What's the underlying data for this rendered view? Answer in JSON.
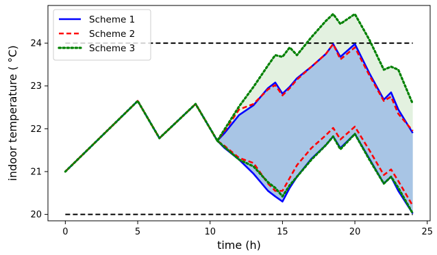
{
  "chart_data": {
    "type": "line",
    "xlabel": "time (h)",
    "ylabel": "indoor temperature ( °C)",
    "xlim": [
      -1.2,
      25.2
    ],
    "ylim": [
      19.85,
      24.88
    ],
    "xticks": [
      0,
      5,
      10,
      15,
      20,
      25
    ],
    "yticks": [
      20,
      21,
      22,
      23,
      24
    ],
    "legend_position": "top-left",
    "reference_lines": [
      {
        "y": 24,
        "x_range": [
          0,
          24
        ],
        "color": "#000000",
        "style": "dashed"
      },
      {
        "y": 20,
        "x_range": [
          0,
          24
        ],
        "color": "#000000",
        "style": "dashed"
      }
    ],
    "bands": [
      {
        "color": "#e3f1e0",
        "x": [
          10.5,
          12,
          13,
          14,
          14.5,
          15,
          15.5,
          16,
          17,
          18,
          18.5,
          19,
          20,
          21,
          22,
          22.5,
          23,
          24
        ],
        "upper": [
          21.72,
          22.52,
          22.98,
          23.48,
          23.72,
          23.68,
          23.9,
          23.72,
          24.14,
          24.52,
          24.68,
          24.45,
          24.68,
          24.08,
          23.38,
          23.45,
          23.38,
          22.58
        ],
        "lower": [
          21.72,
          21.28,
          21.12,
          20.75,
          20.62,
          20.42,
          20.68,
          20.88,
          21.28,
          21.62,
          21.82,
          21.52,
          21.88,
          21.28,
          20.72,
          20.88,
          20.62,
          20.02
        ]
      },
      {
        "color": "#a8c5e5",
        "x": [
          10.5,
          11,
          12,
          13,
          14,
          14.5,
          15,
          15.5,
          16,
          17,
          18,
          18.5,
          19,
          20,
          21,
          22,
          22.5,
          23,
          24
        ],
        "upper": [
          21.72,
          21.9,
          22.32,
          22.55,
          22.95,
          23.08,
          22.82,
          22.98,
          23.18,
          23.45,
          23.75,
          23.98,
          23.68,
          23.98,
          23.3,
          22.68,
          22.85,
          22.45,
          21.9
        ],
        "lower": [
          21.72,
          21.55,
          21.28,
          20.95,
          20.55,
          20.42,
          20.3,
          20.62,
          20.88,
          21.3,
          21.62,
          21.82,
          21.55,
          21.88,
          21.3,
          20.72,
          20.88,
          20.55,
          20.02
        ]
      }
    ],
    "series": [
      {
        "name": "Scheme 1",
        "color": "#0000ff",
        "style": "solid",
        "segments": [
          {
            "x": [
              0,
              5,
              6.5,
              9,
              10.5,
              11,
              12,
              13,
              14,
              14.5,
              15,
              15.5,
              16,
              17,
              18,
              18.5,
              19,
              20,
              21,
              22,
              22.5,
              23,
              24
            ],
            "y": [
              21.0,
              22.65,
              21.78,
              22.58,
              21.72,
              21.9,
              22.32,
              22.55,
              22.95,
              23.08,
              22.82,
              22.98,
              23.18,
              23.45,
              23.75,
              23.98,
              23.68,
              23.98,
              23.3,
              22.68,
              22.85,
              22.45,
              21.9
            ]
          },
          {
            "x": [
              10.5,
              11,
              12,
              13,
              14,
              14.5,
              15,
              15.5,
              16,
              17,
              18,
              18.5,
              19,
              20,
              21,
              22,
              22.5,
              23,
              24
            ],
            "y": [
              21.72,
              21.55,
              21.28,
              20.95,
              20.55,
              20.42,
              20.3,
              20.62,
              20.88,
              21.3,
              21.62,
              21.82,
              21.55,
              21.88,
              21.3,
              20.72,
              20.88,
              20.55,
              20.02
            ]
          }
        ]
      },
      {
        "name": "Scheme 2",
        "color": "#ff0000",
        "style": "dashed",
        "segments": [
          {
            "x": [
              0,
              5,
              6.5,
              9,
              10.5,
              11,
              12,
              13,
              14,
              14.5,
              15,
              15.5,
              16,
              17,
              18,
              18.5,
              19,
              20,
              21,
              22,
              22.5,
              23,
              24
            ],
            "y": [
              21.0,
              22.65,
              21.78,
              22.58,
              21.72,
              21.95,
              22.45,
              22.58,
              22.92,
              23.02,
              22.78,
              22.95,
              23.15,
              23.45,
              23.75,
              23.98,
              23.62,
              23.9,
              23.25,
              22.65,
              22.75,
              22.35,
              21.95
            ]
          },
          {
            "x": [
              10.5,
              11,
              12,
              13,
              14,
              14.5,
              15,
              15.5,
              16,
              17,
              18,
              18.5,
              19,
              20,
              21,
              22,
              22.5,
              23,
              24
            ],
            "y": [
              21.72,
              21.6,
              21.32,
              21.2,
              20.72,
              20.55,
              20.55,
              20.85,
              21.15,
              21.55,
              21.85,
              22.02,
              21.75,
              22.05,
              21.5,
              20.92,
              21.05,
              20.78,
              20.2
            ]
          }
        ]
      },
      {
        "name": "Scheme 3",
        "color": "#008000",
        "style": "dotted",
        "segments": [
          {
            "x": [
              0,
              5,
              6.5,
              9,
              10.5,
              12,
              13,
              14,
              14.5,
              15,
              15.5,
              16,
              17,
              18,
              18.5,
              19,
              20,
              21,
              22,
              22.5,
              23,
              24
            ],
            "y": [
              21.0,
              22.65,
              21.78,
              22.58,
              21.72,
              22.52,
              22.98,
              23.48,
              23.72,
              23.68,
              23.9,
              23.72,
              24.14,
              24.52,
              24.68,
              24.45,
              24.68,
              24.08,
              23.38,
              23.45,
              23.38,
              22.58
            ]
          },
          {
            "x": [
              10.5,
              12,
              13,
              14,
              14.5,
              15,
              15.5,
              16,
              17,
              18,
              18.5,
              19,
              20,
              21,
              22,
              22.5,
              23,
              24
            ],
            "y": [
              21.72,
              21.28,
              21.12,
              20.75,
              20.62,
              20.42,
              20.68,
              20.88,
              21.28,
              21.62,
              21.82,
              21.52,
              21.88,
              21.28,
              20.72,
              20.88,
              20.62,
              20.02
            ]
          }
        ]
      }
    ]
  }
}
